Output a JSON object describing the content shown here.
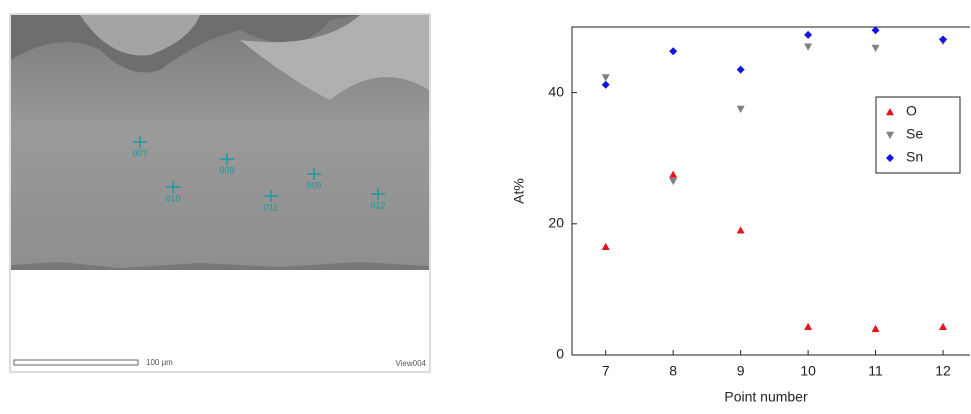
{
  "micrograph": {
    "labels": [
      "007",
      "010",
      "008",
      "011",
      "009",
      "012"
    ],
    "scale_bar": "100 µm",
    "view": "View004"
  },
  "chart_data": {
    "type": "scatter",
    "x": [
      7,
      8,
      9,
      10,
      11,
      12
    ],
    "series": [
      {
        "name": "O",
        "color": "#e8141c",
        "marker": "triangle-up",
        "values": [
          16.5,
          27.5,
          19,
          4.3,
          4.0,
          4.3
        ]
      },
      {
        "name": "Se",
        "color": "#808080",
        "marker": "triangle-down",
        "values": [
          42.3,
          26.5,
          37.5,
          47,
          46.8,
          47.8
        ]
      },
      {
        "name": "Sn",
        "color": "#1414e0",
        "marker": "diamond",
        "values": [
          41.2,
          46.3,
          43.5,
          48.8,
          49.5,
          48.1
        ]
      }
    ],
    "xlabel": "Point number",
    "ylabel": "At%",
    "xlim": [
      6.5,
      12.4
    ],
    "ylim": [
      0,
      50
    ],
    "xticks": [
      7,
      8,
      9,
      10,
      11,
      12
    ],
    "yticks": [
      0,
      20,
      40
    ],
    "legend": "upper right"
  }
}
